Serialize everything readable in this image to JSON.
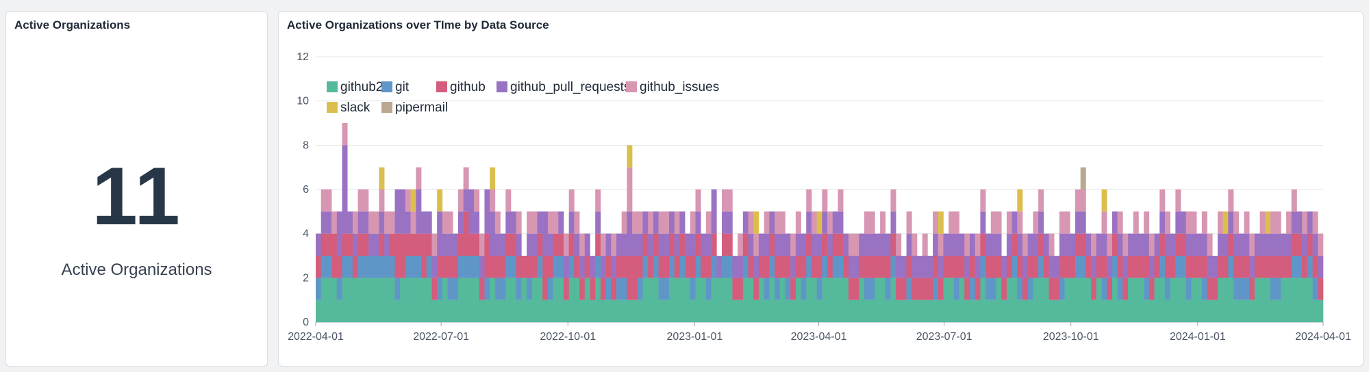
{
  "kpi_card": {
    "title": "Active Organizations",
    "value": "11",
    "label": "Active Organizations"
  },
  "chart_card": {
    "title": "Active Organizations over TIme by Data Source"
  },
  "colors": {
    "github2": "#55b99b",
    "git": "#5f96c7",
    "github": "#d45c7c",
    "github_pull_requests": "#9a72c3",
    "github_issues": "#d796b2",
    "slack": "#dbbf4e",
    "pipermail": "#b9a78f"
  },
  "chart_data": {
    "type": "bar",
    "stacked": true,
    "title": "Active Organizations over TIme by Data Source",
    "xlabel": "",
    "ylabel": "",
    "ylim": [
      0,
      12
    ],
    "y_ticks": [
      0,
      2,
      4,
      6,
      8,
      10,
      12
    ],
    "x_range": [
      "2022-04-01",
      "2024-04-01"
    ],
    "x_ticks": [
      "2022-04-01",
      "2022-07-01",
      "2022-10-01",
      "2023-01-01",
      "2023-04-01",
      "2023-07-01",
      "2023-10-01",
      "2024-01-01",
      "2024-04-01"
    ],
    "grid": true,
    "legend_position": "top-left",
    "series_names": [
      "github2",
      "git",
      "github",
      "github_pull_requests",
      "github_issues",
      "slack",
      "pipermail"
    ],
    "series": [
      {
        "name": "github2",
        "values": [
          1,
          2,
          2,
          2,
          1,
          2,
          2,
          2,
          2,
          2,
          2,
          2,
          2,
          2,
          2,
          1,
          2,
          2,
          2,
          2,
          2,
          2,
          1,
          1,
          2,
          1,
          1,
          2,
          2,
          2,
          2,
          1,
          1,
          2,
          1,
          1,
          2,
          2,
          1,
          2,
          1,
          2,
          2,
          1,
          1,
          2,
          2,
          1,
          2,
          2,
          1,
          2,
          1,
          2,
          1,
          1,
          1,
          1,
          1,
          1,
          1,
          1,
          2,
          2,
          2,
          1,
          1,
          2,
          2,
          2,
          2,
          1,
          2,
          2,
          1,
          2,
          2,
          2,
          2,
          1,
          1,
          2,
          2,
          1,
          2,
          1,
          2,
          1,
          2,
          1,
          1,
          2,
          1,
          2,
          2,
          1,
          2,
          2,
          2,
          2,
          2,
          1,
          1,
          2,
          1,
          1,
          2,
          2,
          1,
          2,
          1,
          1,
          1,
          1,
          1,
          1,
          1,
          1,
          1,
          2,
          2,
          1,
          2,
          1,
          1,
          1,
          2,
          1,
          1,
          2,
          1,
          2,
          2,
          1,
          1,
          1,
          2,
          2,
          2,
          1,
          1,
          1,
          2,
          2,
          2,
          2,
          2,
          1,
          2,
          1,
          1,
          2,
          1,
          1,
          2,
          2,
          2,
          1,
          1,
          2,
          2,
          1,
          2,
          2,
          2,
          1,
          2,
          2,
          1,
          1,
          1,
          2,
          2,
          2,
          1,
          1,
          1,
          1,
          2,
          2,
          2,
          1,
          1,
          2,
          2,
          2,
          2,
          2,
          2,
          1,
          1
        ]
      },
      {
        "name": "git",
        "values": [
          1,
          1,
          1,
          0,
          1,
          1,
          1,
          0,
          1,
          1,
          1,
          1,
          1,
          1,
          1,
          1,
          0,
          1,
          1,
          1,
          0,
          1,
          0,
          1,
          0,
          1,
          1,
          1,
          1,
          1,
          1,
          0,
          1,
          0,
          1,
          1,
          1,
          1,
          1,
          0,
          1,
          0,
          1,
          0,
          1,
          1,
          1,
          0,
          1,
          0,
          0,
          0,
          0,
          1,
          0,
          1,
          0,
          1,
          1,
          0,
          0,
          1,
          1,
          0,
          1,
          1,
          1,
          1,
          0,
          1,
          0,
          1,
          1,
          0,
          1,
          1,
          0,
          1,
          1,
          0,
          0,
          1,
          0,
          0,
          0,
          1,
          1,
          1,
          0,
          1,
          0,
          0,
          1,
          1,
          0,
          1,
          1,
          0,
          1,
          1,
          0,
          0,
          0,
          0,
          1,
          1,
          0,
          0,
          1,
          1,
          0,
          0,
          1,
          0,
          0,
          0,
          0,
          1,
          0,
          0,
          0,
          1,
          0,
          0,
          1,
          0,
          1,
          1,
          1,
          0,
          0,
          0,
          1,
          1,
          0,
          1,
          0,
          1,
          0,
          0,
          0,
          1,
          0,
          0,
          1,
          1,
          0,
          0,
          0,
          1,
          0,
          1,
          1,
          0,
          0,
          0,
          0,
          1,
          0,
          0,
          1,
          1,
          0,
          1,
          1,
          1,
          0,
          0,
          1,
          0,
          0,
          0,
          0,
          1,
          1,
          1,
          1,
          0,
          0,
          0,
          0,
          1,
          1,
          0,
          0,
          1,
          1,
          0,
          1,
          1,
          0,
          0
        ]
      },
      {
        "name": "github",
        "values": [
          1,
          1,
          1,
          2,
          1,
          1,
          1,
          1,
          1,
          1,
          0,
          0,
          1,
          0,
          1,
          2,
          2,
          1,
          1,
          1,
          2,
          1,
          1,
          1,
          1,
          1,
          1,
          1,
          2,
          1,
          1,
          1,
          2,
          1,
          1,
          1,
          1,
          1,
          1,
          1,
          1,
          1,
          1,
          2,
          1,
          1,
          1,
          1,
          1,
          1,
          1,
          1,
          1,
          1,
          1,
          1,
          1,
          1,
          1,
          2,
          2,
          1,
          1,
          1,
          1,
          1,
          1,
          1,
          1,
          1,
          1,
          1,
          1,
          1,
          1,
          1,
          0,
          1,
          1,
          1,
          1,
          1,
          1,
          1,
          1,
          1,
          1,
          1,
          1,
          1,
          1,
          1,
          1,
          1,
          1,
          1,
          1,
          1,
          1,
          1,
          1,
          1,
          1,
          1,
          1,
          1,
          1,
          1,
          1,
          1,
          1,
          1,
          1,
          1,
          1,
          1,
          1,
          1,
          1,
          1,
          1,
          1,
          1,
          1,
          1,
          1,
          1,
          1,
          1,
          1,
          1,
          1,
          1,
          1,
          1,
          1,
          1,
          1,
          1,
          1,
          1,
          1,
          1,
          1,
          1,
          1,
          1,
          1,
          1,
          1,
          1,
          1,
          1,
          1,
          1,
          1,
          1,
          1,
          1,
          1,
          1,
          1,
          1,
          1,
          1,
          1,
          1,
          1,
          1,
          1,
          1,
          1,
          1,
          1,
          1,
          1,
          1,
          1,
          1,
          1,
          1,
          1,
          1,
          1,
          1,
          1,
          1,
          1,
          1,
          1,
          1
        ]
      },
      {
        "name": "github_pull_requests",
        "values": [
          1,
          1,
          1,
          0,
          2,
          4,
          1,
          1,
          1,
          1,
          1,
          1,
          1,
          1,
          0,
          2,
          2,
          1,
          0,
          2,
          1,
          1,
          1,
          2,
          1,
          1,
          1,
          1,
          1,
          2,
          1,
          1,
          2,
          2,
          1,
          1,
          1,
          1,
          1,
          0,
          1,
          1,
          1,
          2,
          1,
          0,
          1,
          1,
          1,
          1,
          1,
          1,
          1,
          1,
          1,
          1,
          1,
          1,
          1,
          2,
          1,
          1,
          1,
          1,
          1,
          1,
          1,
          1,
          1,
          1,
          1,
          1,
          1,
          1,
          1,
          2,
          1,
          1,
          1,
          1,
          1,
          1,
          1,
          1,
          1,
          1,
          1,
          1,
          1,
          1,
          1,
          1,
          1,
          1,
          1,
          1,
          1,
          1,
          1,
          1,
          1,
          1,
          1,
          1,
          1,
          1,
          1,
          1,
          1,
          1,
          1,
          1,
          1,
          1,
          1,
          1,
          1,
          1,
          1,
          1,
          1,
          1,
          1,
          1,
          1,
          1,
          1,
          1,
          1,
          1,
          1,
          1,
          1,
          1,
          1,
          1,
          1,
          1,
          1,
          1,
          1,
          1,
          1,
          1,
          1,
          1,
          1,
          1,
          1,
          1,
          1,
          1,
          1,
          1,
          1,
          1,
          1,
          1,
          1,
          1,
          1,
          1,
          1,
          1,
          1,
          1,
          1,
          1,
          1,
          1,
          1,
          1,
          1,
          1,
          1,
          1,
          1,
          1,
          1,
          1,
          1,
          1,
          1,
          1,
          1,
          1,
          1,
          1,
          1,
          1,
          1
        ]
      },
      {
        "name": "github_issues",
        "values": [
          0,
          1,
          1,
          1,
          0,
          1,
          0,
          1,
          1,
          1,
          1,
          1,
          1,
          1,
          1,
          0,
          0,
          1,
          1,
          1,
          0,
          0,
          1,
          0,
          1,
          1,
          0,
          1,
          1,
          0,
          1,
          1,
          0,
          1,
          1,
          0,
          1,
          0,
          1,
          0,
          1,
          1,
          0,
          0,
          1,
          1,
          0,
          1,
          1,
          1,
          1,
          0,
          0,
          1,
          1,
          0,
          1,
          0,
          1,
          2,
          1,
          1,
          0,
          1,
          0,
          1,
          1,
          0,
          1,
          0,
          0,
          1,
          1,
          0,
          1,
          0,
          0,
          1,
          1,
          0,
          1,
          0,
          1,
          1,
          0,
          1,
          0,
          1,
          1,
          0,
          1,
          1,
          0,
          1,
          1,
          0,
          1,
          1,
          0,
          1,
          0,
          1,
          1,
          0,
          1,
          1,
          0,
          1,
          0,
          1,
          1,
          0,
          1,
          1,
          0,
          1,
          0,
          1,
          1,
          0,
          1,
          1,
          0,
          1,
          0,
          1,
          1,
          0,
          1,
          1,
          0,
          1,
          0,
          1,
          1,
          0,
          1,
          1,
          0,
          1,
          0,
          1,
          1,
          0,
          1,
          1,
          0,
          1,
          0,
          1,
          1,
          0,
          1,
          1,
          0,
          1,
          0,
          1,
          1,
          0,
          1,
          1,
          0,
          1,
          0,
          1,
          1,
          0,
          1,
          1,
          0,
          1,
          0,
          1,
          1,
          0,
          1,
          1,
          0,
          1,
          0,
          1,
          1,
          0,
          1,
          1,
          0,
          1,
          0,
          1,
          1
        ]
      },
      {
        "name": "slack",
        "values": [
          0,
          0,
          0,
          0,
          0,
          0,
          0,
          0,
          0,
          0,
          0,
          0,
          1,
          0,
          0,
          0,
          0,
          0,
          1,
          0,
          0,
          0,
          0,
          1,
          0,
          0,
          0,
          0,
          0,
          0,
          0,
          0,
          0,
          1,
          0,
          0,
          0,
          0,
          0,
          0,
          0,
          0,
          0,
          0,
          0,
          0,
          0,
          0,
          0,
          0,
          0,
          0,
          0,
          0,
          0,
          0,
          0,
          0,
          0,
          1,
          0,
          0,
          0,
          0,
          0,
          0,
          0,
          0,
          0,
          0,
          0,
          0,
          0,
          0,
          0,
          0,
          0,
          0,
          0,
          0,
          0,
          0,
          0,
          1,
          0,
          0,
          0,
          0,
          0,
          0,
          0,
          0,
          0,
          0,
          0,
          1,
          0,
          0,
          0,
          0,
          0,
          0,
          0,
          0,
          0,
          0,
          0,
          0,
          0,
          0,
          0,
          0,
          0,
          0,
          0,
          0,
          0,
          0,
          1,
          0,
          0,
          0,
          0,
          0,
          0,
          0,
          0,
          0,
          0,
          0,
          0,
          0,
          0,
          1,
          0,
          0,
          0,
          0,
          0,
          0,
          0,
          0,
          0,
          0,
          0,
          0,
          0,
          0,
          0,
          1,
          0,
          0,
          0,
          0,
          0,
          0,
          0,
          0,
          0,
          0,
          0,
          0,
          0,
          0,
          0,
          0,
          0,
          0,
          0,
          0,
          0,
          0,
          1,
          0,
          0,
          0,
          0,
          0,
          0,
          0,
          1,
          0,
          0,
          0,
          0,
          0,
          0,
          0,
          0,
          0,
          0
        ]
      },
      {
        "name": "pipermail",
        "values": [
          0,
          0,
          0,
          0,
          0,
          0,
          0,
          0,
          0,
          0,
          0,
          0,
          0,
          0,
          0,
          0,
          0,
          0,
          0,
          0,
          0,
          0,
          0,
          0,
          0,
          0,
          0,
          0,
          0,
          0,
          0,
          0,
          0,
          0,
          0,
          0,
          0,
          0,
          0,
          0,
          0,
          0,
          0,
          0,
          0,
          0,
          0,
          0,
          0,
          0,
          0,
          0,
          0,
          0,
          0,
          0,
          0,
          0,
          0,
          0,
          0,
          0,
          0,
          0,
          0,
          0,
          0,
          0,
          0,
          0,
          0,
          0,
          0,
          0,
          0,
          0,
          0,
          0,
          0,
          0,
          0,
          0,
          0,
          0,
          0,
          0,
          0,
          0,
          0,
          0,
          0,
          0,
          0,
          0,
          0,
          0,
          0,
          0,
          0,
          0,
          0,
          0,
          0,
          0,
          0,
          0,
          0,
          0,
          0,
          0,
          0,
          0,
          0,
          0,
          0,
          0,
          0,
          0,
          0,
          0,
          0,
          0,
          0,
          0,
          0,
          0,
          0,
          0,
          0,
          0,
          0,
          0,
          0,
          0,
          0,
          0,
          0,
          0,
          0,
          0,
          0,
          0,
          0,
          0,
          0,
          1,
          0,
          0,
          0,
          0,
          0,
          0,
          0,
          0,
          0,
          0,
          0,
          0,
          0,
          0,
          0,
          0,
          0,
          0,
          0,
          0,
          0,
          0,
          0,
          0,
          0,
          0,
          0,
          0,
          0,
          0,
          0,
          0,
          0,
          0,
          0,
          0,
          0,
          0,
          0,
          0,
          0,
          0,
          0,
          0,
          0
        ]
      }
    ]
  }
}
